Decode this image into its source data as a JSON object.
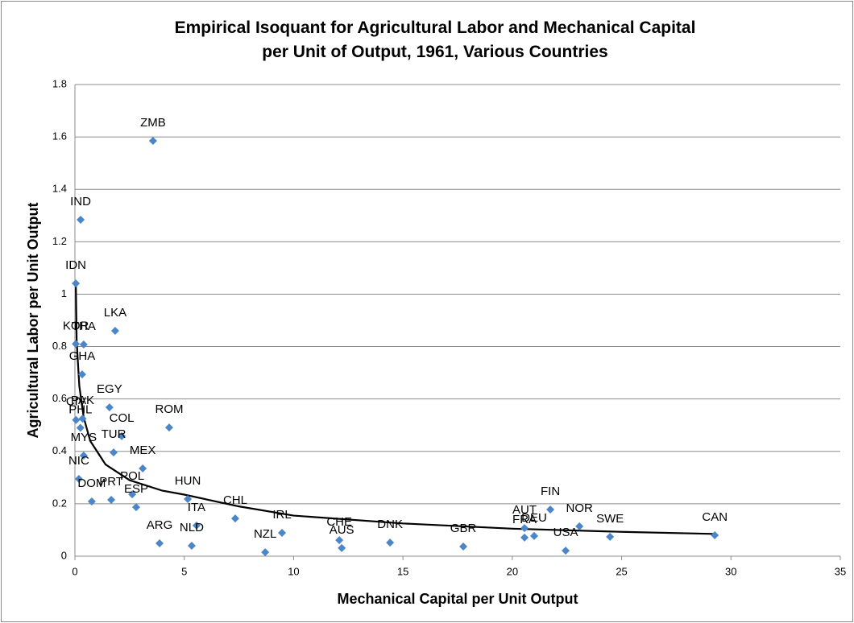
{
  "chart_data": {
    "type": "scatter",
    "title": "Empirical Isoquant for Agricultural Labor and Mechanical Capital  per Unit of Output, 1961, Various Countries",
    "x_label": "Mechanical Capital per Unit Output",
    "y_label": "Agricultural Labor per Unit Output",
    "color": "#4a86c8",
    "curve_color": "#000000",
    "grid": true,
    "xlim": [
      0,
      35
    ],
    "xticks": [
      0,
      5,
      10,
      15,
      20,
      25,
      30,
      35
    ],
    "ylim": [
      0,
      1.8
    ],
    "yticks": [
      0,
      0.2,
      0.4,
      0.6,
      0.8,
      1,
      1.2,
      1.4,
      1.6,
      1.8
    ],
    "points": [
      {
        "label": "ZMB",
        "x": 3.57,
        "y": 1.585
      },
      {
        "label": "IND",
        "x": 0.26,
        "y": 1.284
      },
      {
        "label": "IDN",
        "x": 0.04,
        "y": 1.041
      },
      {
        "label": "LKA",
        "x": 1.84,
        "y": 0.86
      },
      {
        "label": "KOR",
        "x": 0.04,
        "y": 0.81
      },
      {
        "label": "THA",
        "x": 0.4,
        "y": 0.808
      },
      {
        "label": "GHA",
        "x": 0.33,
        "y": 0.694
      },
      {
        "label": "EGY",
        "x": 1.58,
        "y": 0.568
      },
      {
        "label": "PAK",
        "x": 0.35,
        "y": 0.525
      },
      {
        "label": "CIV",
        "x": 0.05,
        "y": 0.52
      },
      {
        "label": "PHL",
        "x": 0.25,
        "y": 0.49
      },
      {
        "label": "COL",
        "x": 2.14,
        "y": 0.458
      },
      {
        "label": "TUR",
        "x": 1.77,
        "y": 0.396
      },
      {
        "label": "MYS",
        "x": 0.4,
        "y": 0.384
      },
      {
        "label": "ROM",
        "x": 4.31,
        "y": 0.491
      },
      {
        "label": "MEX",
        "x": 3.1,
        "y": 0.335
      },
      {
        "label": "NIC",
        "x": 0.18,
        "y": 0.295
      },
      {
        "label": "POL",
        "x": 2.62,
        "y": 0.236
      },
      {
        "label": "PRT",
        "x": 1.66,
        "y": 0.215
      },
      {
        "label": "ESP",
        "x": 2.8,
        "y": 0.187
      },
      {
        "label": "DOM",
        "x": 0.77,
        "y": 0.209
      },
      {
        "label": "HUN",
        "x": 5.16,
        "y": 0.218
      },
      {
        "label": "CHL",
        "x": 7.33,
        "y": 0.144
      },
      {
        "label": "ITA",
        "x": 5.56,
        "y": 0.117
      },
      {
        "label": "NLD",
        "x": 5.34,
        "y": 0.04
      },
      {
        "label": "ARG",
        "x": 3.87,
        "y": 0.049
      },
      {
        "label": "NZL",
        "x": 8.7,
        "y": 0.015
      },
      {
        "label": "IRL",
        "x": 9.47,
        "y": 0.089
      },
      {
        "label": "CHE",
        "x": 12.09,
        "y": 0.061
      },
      {
        "label": "AUS",
        "x": 12.2,
        "y": 0.031
      },
      {
        "label": "DNK",
        "x": 14.41,
        "y": 0.052
      },
      {
        "label": "GBR",
        "x": 17.76,
        "y": 0.037
      },
      {
        "label": "FRA",
        "x": 20.56,
        "y": 0.071
      },
      {
        "label": "AUT",
        "x": 20.56,
        "y": 0.107
      },
      {
        "label": "DEU",
        "x": 21.0,
        "y": 0.077
      },
      {
        "label": "FIN",
        "x": 21.74,
        "y": 0.178
      },
      {
        "label": "NOR",
        "x": 23.07,
        "y": 0.114
      },
      {
        "label": "USA",
        "x": 22.44,
        "y": 0.021
      },
      {
        "label": "SWE",
        "x": 24.47,
        "y": 0.074
      },
      {
        "label": "CAN",
        "x": 29.26,
        "y": 0.08
      }
    ],
    "curve": {
      "x": [
        0.04,
        0.08,
        0.2,
        0.4,
        0.7,
        1.4,
        2.5,
        4,
        5,
        7.5,
        10,
        15,
        20,
        25,
        29.2
      ],
      "y": [
        1.05,
        0.82,
        0.65,
        0.53,
        0.44,
        0.35,
        0.29,
        0.25,
        0.235,
        0.19,
        0.155,
        0.125,
        0.105,
        0.093,
        0.085
      ]
    }
  }
}
